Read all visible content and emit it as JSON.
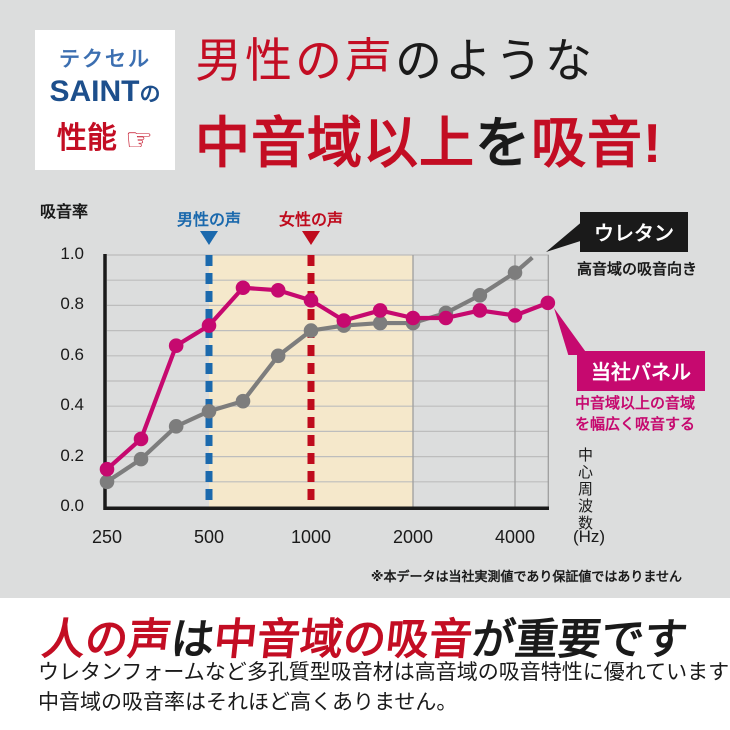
{
  "badge": {
    "line1": "テクセル",
    "line2_main": "SAINT",
    "line2_suffix": "の",
    "line3": "性能",
    "hand_icon": "☞"
  },
  "header": {
    "line1": [
      {
        "text": "男性の声",
        "color": "#c30d23"
      },
      {
        "text": "のような",
        "color": "#1a1a1a"
      }
    ],
    "line2": [
      {
        "text": "中音域以上",
        "color": "#c30d23"
      },
      {
        "text": "を",
        "color": "#1a1a1a"
      },
      {
        "text": "吸音!",
        "color": "#c30d23"
      }
    ]
  },
  "chart": {
    "y_axis_title": "吸音率",
    "male_voice_label": "男性の声",
    "female_voice_label": "女性の声",
    "x_unit": "(Hz)",
    "x_axis_title": "中心周波数",
    "note": "※本データは当社実測値であり保証値ではありません",
    "urethane_label": "ウレタン",
    "urethane_caption": "高音域の吸音向き",
    "panel_label": "当社パネル",
    "panel_caption_line1": "中音域以上の音域",
    "panel_caption_line2": "を幅広く吸音する"
  },
  "chart_data": {
    "type": "line",
    "title": "",
    "xlabel": "中心周波数 (Hz)",
    "ylabel": "吸音率",
    "x_scale": "log2",
    "ylim": [
      0.0,
      1.0
    ],
    "grid": true,
    "xticks": [
      250,
      500,
      1000,
      2000,
      4000
    ],
    "yticks": [
      "1.0",
      "0.8",
      "0.6",
      "0.4",
      "0.2",
      "0.0"
    ],
    "vertical_gridlines": [
      2000,
      4000
    ],
    "highlight_band_hz": [
      500,
      2000
    ],
    "male_voice_line_hz": 500,
    "female_voice_line_hz": 1000,
    "series": [
      {
        "name": "ウレタン",
        "color": "#7d7d7d",
        "x": [
          250,
          315,
          400,
          500,
          630,
          800,
          1000,
          1250,
          1600,
          2000,
          2500,
          3150,
          4000,
          4500
        ],
        "values": [
          0.1,
          0.19,
          0.32,
          0.38,
          0.42,
          0.6,
          0.7,
          0.72,
          0.73,
          0.73,
          0.77,
          0.84,
          0.93,
          0.99
        ],
        "last_point_marker": false
      },
      {
        "name": "当社パネル",
        "color": "#c6096f",
        "x": [
          250,
          315,
          400,
          500,
          630,
          800,
          1000,
          1250,
          1600,
          2000,
          2500,
          3150,
          4000,
          5000
        ],
        "values": [
          0.15,
          0.27,
          0.64,
          0.72,
          0.87,
          0.86,
          0.82,
          0.74,
          0.78,
          0.75,
          0.75,
          0.78,
          0.76,
          0.81
        ],
        "last_point_marker": true
      }
    ]
  },
  "footer": {
    "heading": [
      {
        "text": "人の声",
        "color": "#c30d23"
      },
      {
        "text": "は",
        "color": "#1a1a1a"
      },
      {
        "text": "中音域の吸音",
        "color": "#c30d23"
      },
      {
        "text": "が重要です",
        "color": "#1a1a1a"
      }
    ],
    "body_line1": "ウレタンフォームなど多孔質型吸音材は高音域の吸音特性に優れていますが",
    "body_line2": "中音域の吸音率はそれほど高くありません。"
  },
  "colors": {
    "background": "#dcdddd",
    "accent_red": "#c30d23",
    "navy": "#1d4f8c",
    "badge_blue": "#3c6fb1",
    "male_blue": "#1b69ad",
    "female_red": "#bf0b1d",
    "magenta": "#c6096f",
    "gray_line": "#7d7d7d",
    "band_beige": "#f5e8cb",
    "gridline": "#bdbdbd",
    "box_black": "#1a1a1a"
  }
}
